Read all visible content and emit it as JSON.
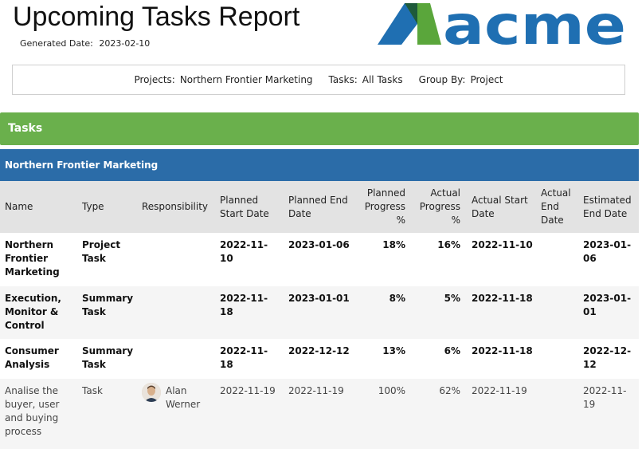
{
  "header": {
    "title": "Upcoming Tasks Report",
    "generated_label": "Generated Date:",
    "generated_value": "2023-02-10",
    "logo_text": "acme",
    "logo_colors": {
      "blue": "#1f6fb2",
      "green": "#5aa63b",
      "dark_green": "#1e5a3a"
    }
  },
  "filters": {
    "projects_label": "Projects:",
    "projects_value": "Northern Frontier Marketing",
    "tasks_label": "Tasks:",
    "tasks_value": "All Tasks",
    "group_label": "Group By:",
    "group_value": "Project"
  },
  "section": {
    "title": "Tasks",
    "color": "#6ab04c"
  },
  "group": {
    "title": "Northern Frontier Marketing",
    "color": "#2b6ca8"
  },
  "columns": [
    "Name",
    "Type",
    "Responsibility",
    "Planned Start Date",
    "Planned End Date",
    "Planned Progress %",
    "Actual Progress %",
    "Actual Start Date",
    "Actual End Date",
    "Estimated End Date"
  ],
  "rows": [
    {
      "name": "Northern Frontier Marketing",
      "type": "Project Task",
      "responsibility": "",
      "planned_start": "2022-11-10",
      "planned_end": "2023-01-06",
      "planned_progress": "18%",
      "actual_progress": "16%",
      "actual_start": "2022-11-10",
      "actual_end": "",
      "estimated_end": "2023-01-06"
    },
    {
      "name": "Execution, Monitor & Control",
      "type": "Summary Task",
      "responsibility": "",
      "planned_start": "2022-11-18",
      "planned_end": "2023-01-01",
      "planned_progress": "8%",
      "actual_progress": "5%",
      "actual_start": "2022-11-18",
      "actual_end": "",
      "estimated_end": "2023-01-01"
    },
    {
      "name": "Consumer Analysis",
      "type": "Summary Task",
      "responsibility": "",
      "planned_start": "2022-11-18",
      "planned_end": "2022-12-12",
      "planned_progress": "13%",
      "actual_progress": "6%",
      "actual_start": "2022-11-18",
      "actual_end": "",
      "estimated_end": "2022-12-12"
    },
    {
      "name": "Analise the buyer, user and buying process",
      "type": "Task",
      "responsibility": "Alan Werner",
      "planned_start": "2022-11-19",
      "planned_end": "2022-11-19",
      "planned_progress": "100%",
      "actual_progress": "62%",
      "actual_start": "2022-11-19",
      "actual_end": "",
      "estimated_end": "2022-11-19"
    }
  ]
}
